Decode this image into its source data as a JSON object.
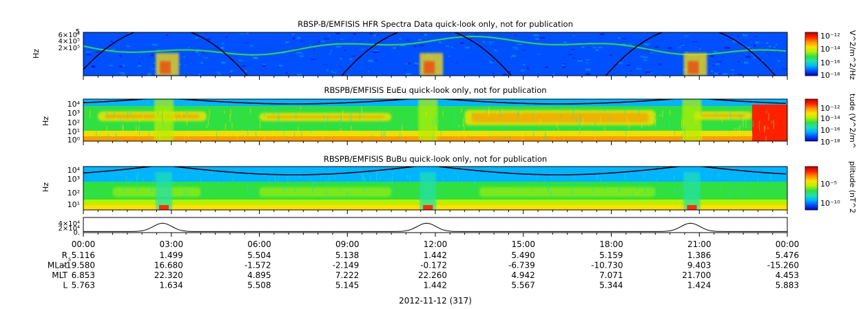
{
  "colors": {
    "spectrogram_scale": [
      "#0a00b4",
      "#0050ff",
      "#00b4ff",
      "#20e0b0",
      "#30e040",
      "#b8f000",
      "#ffe000",
      "#ff9000",
      "#ff2000",
      "#c00000"
    ],
    "trace": "#000000",
    "axis": "#000000"
  },
  "chart_data": [
    {
      "type": "heatmap",
      "title": "RBSP-B/EMFISIS  HFR Spectra Data quick-look only, not for publication",
      "ylabel": "Hz",
      "y_ticks": [
        "6×10⁵",
        "4×10⁵",
        "2×10⁵"
      ],
      "y_top_label": "5",
      "colorbar_label": "V^2/m^2/Hz",
      "colorbar_ticks": [
        "10⁻¹²",
        "10⁻¹⁴",
        "10⁻¹⁶",
        "10⁻¹⁸"
      ]
    },
    {
      "type": "heatmap",
      "title": "RBSPB/EMFISIS  EuEu quick-look only, not for publication",
      "ylabel": "Hz",
      "y_ticks": [
        "10⁴",
        "10³",
        "10²",
        "10¹",
        "10⁰"
      ],
      "colorbar_label": "tude (V^2/m^",
      "colorbar_ticks": [
        "10⁻¹²",
        "10⁻¹⁴",
        "10⁻¹⁶",
        "10⁻¹⁸"
      ]
    },
    {
      "type": "heatmap",
      "title": "RBSPB/EMFISIS  BuBu quick-look only, not for publication",
      "ylabel": "Hz",
      "y_ticks": [
        "10⁴",
        "10³",
        "10²",
        "10¹"
      ],
      "colorbar_label": "plitude (nT^2",
      "colorbar_ticks": [
        "10⁻⁵",
        "10⁻¹⁰"
      ]
    },
    {
      "type": "line",
      "y_ticks": [
        "4×10⁴",
        "2×10⁴",
        "0."
      ],
      "peaks_hours": [
        2.7,
        11.7,
        20.7
      ]
    }
  ],
  "time_axis": {
    "ticks": [
      "00:00",
      "03:00",
      "06:00",
      "09:00",
      "12:00",
      "15:00",
      "18:00",
      "21:00",
      "00:00"
    ],
    "date_label": "2012-11-12 (317)"
  },
  "ephemeris": {
    "rows": [
      {
        "label": "R",
        "sub": "s",
        "values": [
          "5.116",
          "1.499",
          "5.504",
          "5.138",
          "1.442",
          "5.490",
          "5.159",
          "1.386",
          "5.476"
        ]
      },
      {
        "label": "MLat",
        "sub": "",
        "values": [
          "-19.580",
          "16.680",
          "-1.572",
          "-2.149",
          "-0.172",
          "-6.739",
          "-10.730",
          "9.403",
          "-15.260"
        ]
      },
      {
        "label": "MLT",
        "sub": "",
        "values": [
          "6.853",
          "22.320",
          "4.895",
          "7.222",
          "22.260",
          "4.942",
          "7.071",
          "21.700",
          "4.453"
        ]
      },
      {
        "label": "L",
        "sub": "",
        "values": [
          "5.763",
          "1.634",
          "5.508",
          "5.145",
          "1.442",
          "5.567",
          "5.344",
          "1.424",
          "5.883"
        ]
      }
    ]
  }
}
